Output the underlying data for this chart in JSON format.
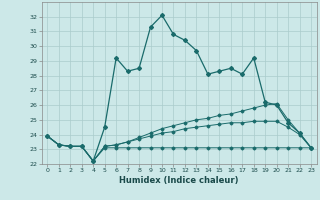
{
  "xlabel": "Humidex (Indice chaleur)",
  "background_color": "#cce8e8",
  "grid_color": "#aacccc",
  "line_color": "#1a6b6b",
  "x_main": [
    0,
    1,
    2,
    3,
    4,
    5,
    6,
    7,
    8,
    9,
    10,
    11,
    12,
    13,
    14,
    15,
    16,
    17,
    18,
    19,
    20,
    21,
    22,
    23
  ],
  "y_main": [
    23.9,
    23.3,
    23.2,
    23.2,
    22.2,
    24.5,
    29.2,
    28.3,
    28.5,
    31.3,
    32.1,
    30.8,
    30.4,
    29.7,
    28.1,
    28.3,
    28.5,
    28.1,
    29.2,
    26.2,
    26.0,
    24.8,
    24.1,
    23.1
  ],
  "y_line2": [
    23.9,
    23.3,
    23.2,
    23.2,
    22.2,
    23.2,
    23.3,
    23.5,
    23.8,
    24.1,
    24.4,
    24.6,
    24.8,
    25.0,
    25.1,
    25.3,
    25.4,
    25.6,
    25.8,
    26.0,
    26.1,
    25.0,
    24.1,
    23.1
  ],
  "y_line3": [
    23.9,
    23.3,
    23.2,
    23.2,
    22.2,
    23.2,
    23.3,
    23.5,
    23.7,
    23.9,
    24.1,
    24.2,
    24.4,
    24.5,
    24.6,
    24.7,
    24.8,
    24.8,
    24.9,
    24.9,
    24.9,
    24.5,
    24.0,
    23.1
  ],
  "y_line4": [
    23.9,
    23.3,
    23.2,
    23.2,
    22.2,
    23.1,
    23.1,
    23.1,
    23.1,
    23.1,
    23.1,
    23.1,
    23.1,
    23.1,
    23.1,
    23.1,
    23.1,
    23.1,
    23.1,
    23.1,
    23.1,
    23.1,
    23.1,
    23.1
  ],
  "ylim": [
    22,
    33
  ],
  "xlim": [
    -0.5,
    23.5
  ],
  "yticks": [
    22,
    23,
    24,
    25,
    26,
    27,
    28,
    29,
    30,
    31,
    32
  ],
  "xticks": [
    0,
    1,
    2,
    3,
    4,
    5,
    6,
    7,
    8,
    9,
    10,
    11,
    12,
    13,
    14,
    15,
    16,
    17,
    18,
    19,
    20,
    21,
    22,
    23
  ]
}
